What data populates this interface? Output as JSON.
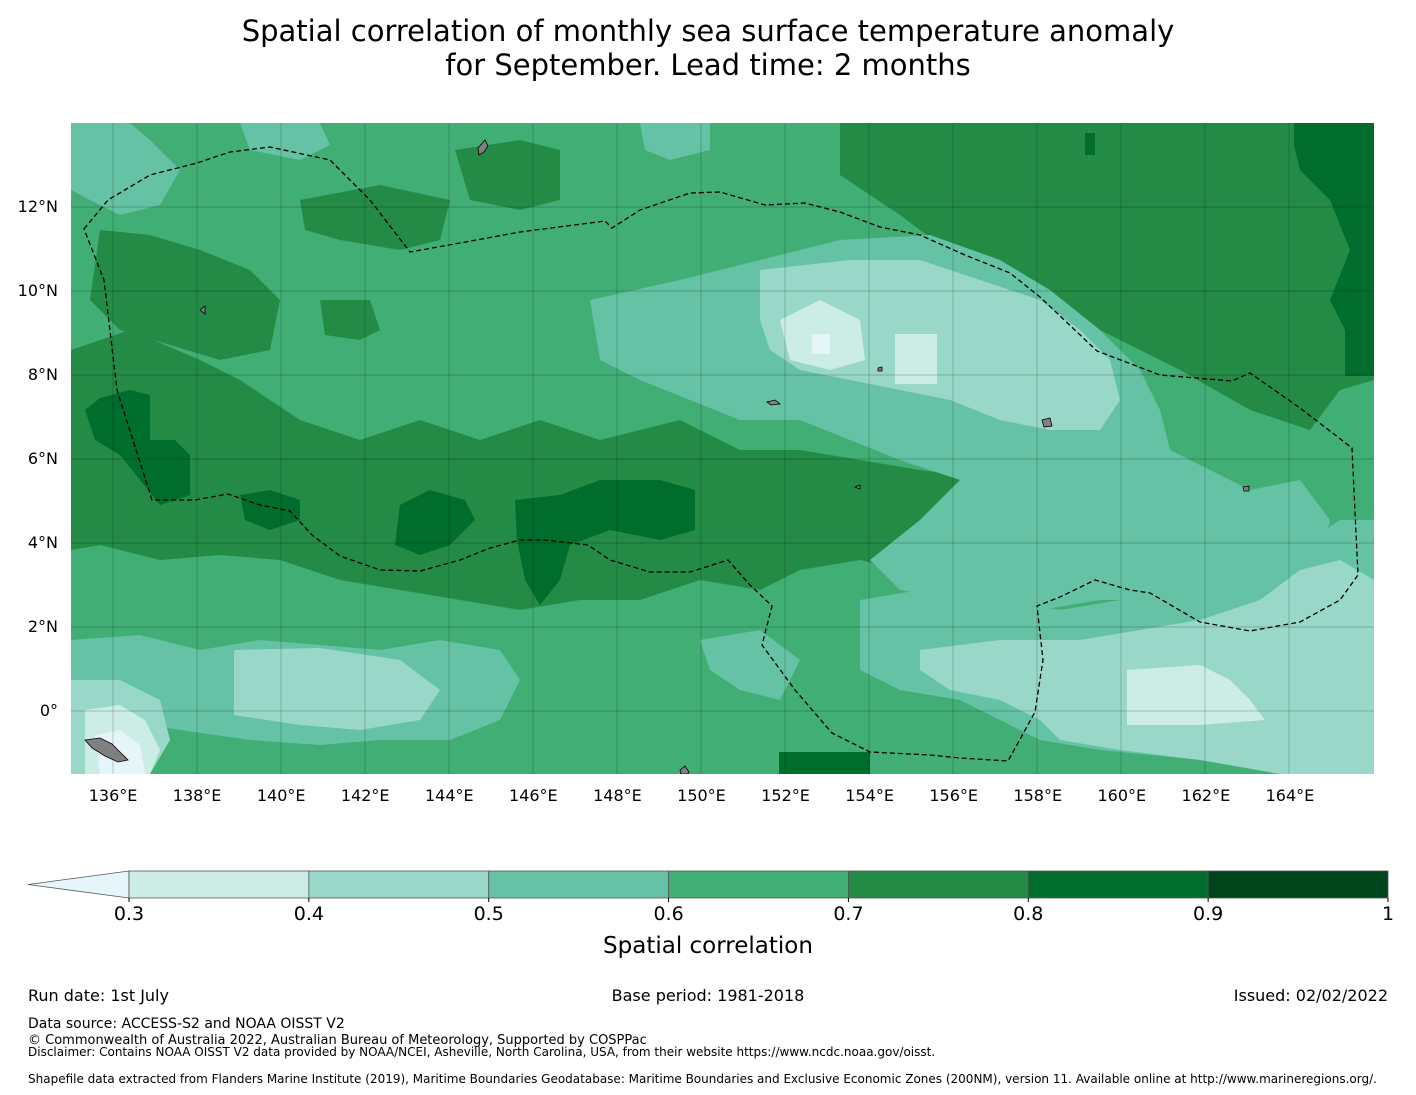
{
  "title": {
    "line1": "Spatial correlation of monthly sea surface temperature anomaly",
    "line2": "for September. Lead time: 2 months"
  },
  "map": {
    "lon_range": [
      135.0,
      166.0
    ],
    "lat_range": [
      -1.5,
      14.0
    ],
    "lon_ticks": [
      "136°E",
      "138°E",
      "140°E",
      "142°E",
      "144°E",
      "146°E",
      "148°E",
      "150°E",
      "152°E",
      "154°E",
      "156°E",
      "158°E",
      "160°E",
      "162°E",
      "164°E"
    ],
    "lon_tick_values": [
      136,
      138,
      140,
      142,
      144,
      146,
      148,
      150,
      152,
      154,
      156,
      158,
      160,
      162,
      164
    ],
    "lat_ticks": [
      "12°N",
      "10°N",
      "8°N",
      "6°N",
      "4°N",
      "2°N",
      "0°"
    ],
    "lat_tick_values": [
      12,
      10,
      8,
      6,
      4,
      2,
      0
    ],
    "gridlines": true,
    "land_color": "#808080",
    "eez_boundary": "dashed black"
  },
  "colorbar": {
    "label": "Spatial correlation",
    "ticks": [
      "0.3",
      "0.4",
      "0.5",
      "0.6",
      "0.7",
      "0.8",
      "0.9",
      "1"
    ],
    "bins": [
      {
        "range": [
          0.0,
          0.3
        ],
        "color": "#e5f5f9",
        "extend": "min"
      },
      {
        "range": [
          0.3,
          0.4
        ],
        "color": "#ccece6"
      },
      {
        "range": [
          0.4,
          0.5
        ],
        "color": "#99d8c9"
      },
      {
        "range": [
          0.5,
          0.6
        ],
        "color": "#66c2a4"
      },
      {
        "range": [
          0.6,
          0.7
        ],
        "color": "#41ae76"
      },
      {
        "range": [
          0.7,
          0.8
        ],
        "color": "#238b45"
      },
      {
        "range": [
          0.8,
          0.9
        ],
        "color": "#006d2c"
      },
      {
        "range": [
          0.9,
          1.0
        ],
        "color": "#00441b"
      }
    ]
  },
  "footer": {
    "run_date": "Run date: 1st July",
    "base_period": "Base period: 1981-2018",
    "issued": "Issued: 02/02/2022",
    "data_source": "Data source: ACCESS-S2 and NOAA OISST V2",
    "copyright": "© Commonwealth of Australia 2022, Australian Bureau of Meteorology, Supported by COSPPac",
    "disclaimer": "Disclaimer: Contains NOAA OISST V2 data provided by NOAA/NCEI, Asheville, North Carolina, USA, from their website https://www.ncdc.noaa.gov/oisst.",
    "shapefile": "Shapefile data extracted from Flanders Marine Institute (2019), Maritime Boundaries Geodatabase: Maritime Boundaries and Exclusive Economic Zones (200NM), version 11. Available online at http://www.marineregions.org/."
  }
}
